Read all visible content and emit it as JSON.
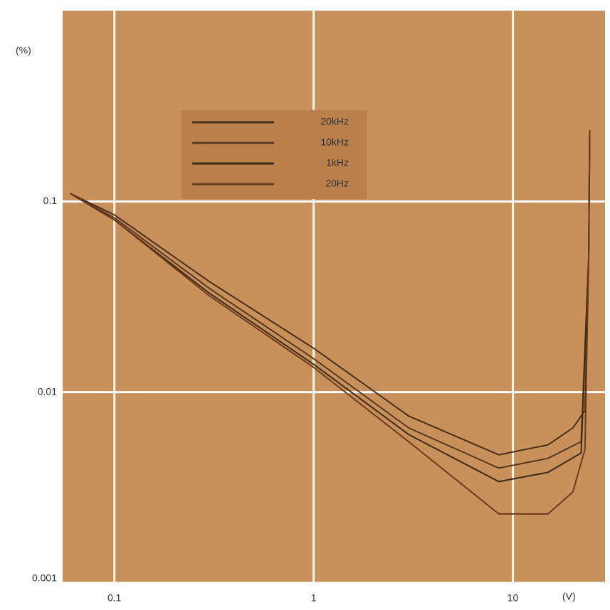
{
  "chart_data": {
    "type": "line",
    "y_unit": "(%)",
    "x_unit": "(V)",
    "xlim": [
      0.055,
      29
    ],
    "ylim": [
      0.001,
      1
    ],
    "xticks": [
      0.1,
      1,
      10
    ],
    "yticks": [
      0.001,
      0.01,
      0.1
    ],
    "log_x": true,
    "log_y": true,
    "grid": true,
    "background": "#c8905a",
    "grid_color": "#ffffff",
    "legend": "upper-left",
    "series": [
      {
        "name": "20kHz",
        "color": "#4a2e18",
        "x": [
          0.06,
          0.1,
          0.3,
          1,
          3,
          8.5,
          15,
          20,
          23,
          24,
          24.3
        ],
        "values": [
          0.11,
          0.085,
          0.038,
          0.017,
          0.0075,
          0.0047,
          0.0053,
          0.0065,
          0.008,
          0.05,
          0.236
        ]
      },
      {
        "name": "10kHz",
        "color": "#5a3820",
        "x": [
          0.06,
          0.1,
          0.3,
          1,
          3,
          8.5,
          15,
          22,
          24,
          24.3
        ],
        "values": [
          0.11,
          0.082,
          0.035,
          0.015,
          0.0065,
          0.004,
          0.0045,
          0.0055,
          0.05,
          0.236
        ]
      },
      {
        "name": "1kHz",
        "color": "#3e2a14",
        "x": [
          0.06,
          0.1,
          0.3,
          1,
          3,
          8.5,
          15,
          22,
          24,
          24.3
        ],
        "values": [
          0.11,
          0.08,
          0.033,
          0.014,
          0.006,
          0.0034,
          0.0038,
          0.0048,
          0.05,
          0.236
        ]
      },
      {
        "name": "20Hz",
        "color": "#6b3a1c",
        "x": [
          0.06,
          0.1,
          0.3,
          1,
          3,
          8.5,
          15,
          20,
          23,
          24,
          24.3
        ],
        "values": [
          0.11,
          0.08,
          0.032,
          0.0135,
          0.0055,
          0.0023,
          0.0023,
          0.003,
          0.005,
          0.05,
          0.236
        ]
      }
    ]
  }
}
